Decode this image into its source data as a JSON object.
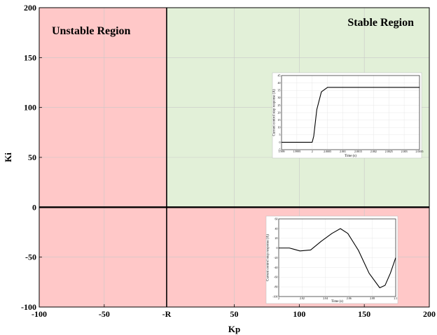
{
  "chart_data": {
    "type": "region",
    "xlabel": "Kp",
    "ylabel": "Ki",
    "xlim": [
      -100,
      200
    ],
    "ylim": [
      -100,
      200
    ],
    "x_ticks": [
      {
        "value": -100,
        "label": "-100"
      },
      {
        "value": -50,
        "label": "-50"
      },
      {
        "value": -2,
        "label": "-R"
      },
      {
        "value": 50,
        "label": "50"
      },
      {
        "value": 100,
        "label": "100"
      },
      {
        "value": 150,
        "label": "150"
      },
      {
        "value": 200,
        "label": "200"
      }
    ],
    "y_ticks": [
      -100,
      -50,
      0,
      50,
      100,
      150,
      200
    ],
    "grid": true,
    "boundary_x": -2,
    "boundary_y": 0,
    "regions": [
      {
        "label": "Unstable Region",
        "x": [
          -100,
          -2
        ],
        "y": [
          -100,
          200
        ],
        "color": "#ffc8c8"
      },
      {
        "label": "",
        "x": [
          -2,
          200
        ],
        "y": [
          -100,
          0
        ],
        "color": "#ffc8c8"
      },
      {
        "label": "Stable Region",
        "x": [
          -2,
          200
        ],
        "y": [
          0,
          200
        ],
        "color": "#e2f0d8"
      }
    ],
    "region_labels": {
      "unstable": "Unstable Region",
      "stable": "Stable Region"
    },
    "insets": [
      {
        "name": "stable-step-response",
        "type": "line",
        "xlabel": "Time (s)",
        "ylabel": "Current control step response (A)",
        "x_ticks": [
          "1.999",
          "1.9995",
          "2",
          "2.0005",
          "2.001",
          "2.0015",
          "2.002",
          "2.0025",
          "2.003",
          "2.0035"
        ],
        "y_ticks": [
          "-5",
          "0",
          "5",
          "10",
          "15",
          "20",
          "25",
          "30",
          "35",
          "40",
          "45"
        ],
        "xlim": [
          1.999,
          2.0035
        ],
        "ylim": [
          -5,
          45
        ],
        "x": [
          1.999,
          2.0,
          2.00005,
          2.00015,
          2.0003,
          2.0005,
          2.001,
          2.002,
          2.003,
          2.0035
        ],
        "y": [
          0,
          0,
          4,
          22,
          34,
          37,
          37,
          37,
          37,
          37
        ]
      },
      {
        "name": "unstable-step-response",
        "type": "line",
        "xlabel": "Time (s)",
        "ylabel": "Current control step response (A)",
        "x_ticks": [
          "2",
          "2.02",
          "2.04",
          "2.06",
          "2.08",
          "2.1"
        ],
        "y_ticks": [
          "-100",
          "-80",
          "-60",
          "-40",
          "-20",
          "0",
          "20",
          "40",
          "60"
        ],
        "xlim": [
          1.99,
          2.1
        ],
        "ylim": [
          -100,
          60
        ],
        "x": [
          1.99,
          2.0,
          2.005,
          2.01,
          2.02,
          2.03,
          2.04,
          2.048,
          2.055,
          2.065,
          2.075,
          2.085,
          2.09,
          2.095,
          2.1
        ],
        "y": [
          0,
          0,
          -3,
          -6,
          -4,
          14,
          30,
          40,
          30,
          -5,
          -52,
          -82,
          -77,
          -52,
          -20
        ]
      }
    ]
  }
}
